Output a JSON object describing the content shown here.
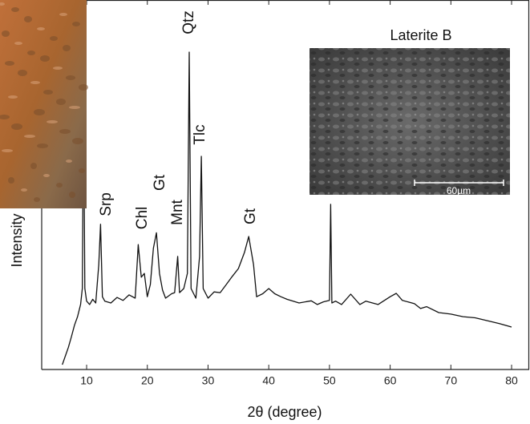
{
  "chart_data": {
    "type": "line",
    "x_label": "2θ (degree)",
    "y_label": "Intensity",
    "xlim": [
      2.6,
      82.9
    ],
    "ylim": [
      0,
      100
    ],
    "xticks": [
      10,
      20,
      30,
      40,
      50,
      60,
      70,
      80
    ],
    "color": "#111111",
    "x": [
      6,
      7,
      7.5,
      8,
      8.5,
      9,
      9.3,
      9.5,
      9.7,
      10,
      10.5,
      11,
      11.5,
      12,
      12.3,
      12.6,
      13,
      14,
      15,
      16,
      17,
      18,
      18.5,
      19,
      19.5,
      20,
      20.5,
      21,
      21.5,
      22,
      22.5,
      23,
      24,
      24.5,
      25,
      25.3,
      26,
      26.6,
      26.9,
      27.2,
      28,
      28.6,
      28.9,
      29.2,
      30,
      31,
      32,
      33,
      34,
      35,
      36,
      36.7,
      37.5,
      38,
      39,
      40,
      41,
      42,
      43,
      45,
      47,
      48,
      49,
      50,
      50.2,
      50.4,
      51,
      52,
      53.5,
      55,
      56,
      58,
      60,
      61,
      62,
      64,
      65,
      66,
      68,
      70,
      72,
      74,
      76,
      78,
      80
    ],
    "values": [
      1.3,
      6,
      8.9,
      12,
      14.3,
      17.6,
      22,
      75,
      22,
      18.5,
      17.6,
      19,
      18,
      28.4,
      39.3,
      19.7,
      18.5,
      18,
      19.5,
      18.7,
      20.2,
      19.3,
      33.8,
      25,
      26,
      19.7,
      23,
      32.8,
      37,
      26,
      21.5,
      19.3,
      20.5,
      20.8,
      30.6,
      20.8,
      21.9,
      26,
      85.9,
      21.9,
      19.3,
      30.6,
      57.7,
      21.9,
      19.3,
      21,
      20.8,
      23,
      25.2,
      27.3,
      31.7,
      36,
      28.4,
      19.7,
      20.5,
      21.9,
      20.5,
      19.7,
      19,
      18,
      18.6,
      17.6,
      18.3,
      18.7,
      44.7,
      18,
      18.5,
      17.6,
      20.4,
      17.6,
      18.5,
      17.6,
      19.7,
      20.6,
      18.7,
      17.8,
      16.5,
      17,
      15.4,
      15,
      14.3,
      14,
      13.2,
      12.4,
      11.5
    ],
    "annotations": [
      "Tlc",
      "Srp",
      "Chl",
      "Gt",
      "Mnt",
      "Qtz",
      "Tlc",
      "Gt"
    ],
    "inset": {
      "title": "Laterite B",
      "scale_label": "60µm"
    }
  }
}
